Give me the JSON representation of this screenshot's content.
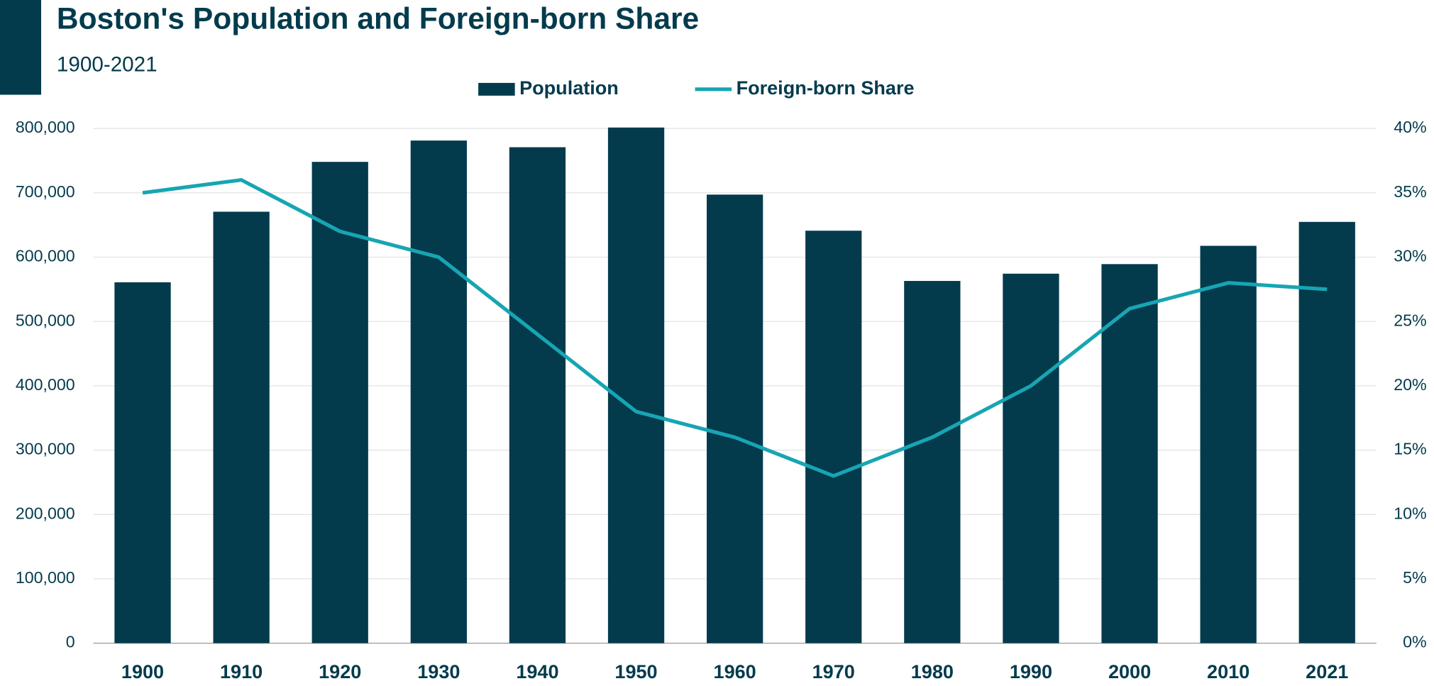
{
  "chart_data": {
    "type": "bar-line",
    "title": "Boston's Population and Foreign-born Share",
    "subtitle": "1900-2021",
    "categories": [
      "1900",
      "1910",
      "1920",
      "1930",
      "1940",
      "1950",
      "1960",
      "1970",
      "1980",
      "1990",
      "2000",
      "2010",
      "2021"
    ],
    "series": [
      {
        "name": "Population",
        "type": "bar",
        "color": "#033b4d",
        "axis": "y",
        "values": [
          560892,
          670585,
          748060,
          781188,
          770816,
          801444,
          697197,
          641071,
          562994,
          574283,
          589141,
          617594,
          654776
        ]
      },
      {
        "name": "Foreign-born Share",
        "type": "line",
        "color": "#17a5b3",
        "axis": "y2",
        "values": [
          35,
          36,
          32,
          30,
          24,
          18,
          16,
          13,
          16,
          20,
          26,
          28,
          27.5
        ]
      }
    ],
    "ylim": [
      0,
      800000
    ],
    "yticks": [
      0,
      {
        "value": 100000,
        "label": "100,000"
      },
      {
        "value": 200000,
        "label": "200,000"
      },
      {
        "value": 300000,
        "label": "300,000"
      },
      {
        "value": 400000,
        "label": "400,000"
      },
      {
        "value": 500000,
        "label": "500,000"
      },
      {
        "value": 600000,
        "label": "600,000"
      },
      {
        "value": 700000,
        "label": "700,000"
      },
      {
        "value": 800000,
        "label": "800,000"
      }
    ],
    "y2lim": [
      0,
      40
    ],
    "y2ticks": [
      {
        "value": 0,
        "label": "0%"
      },
      {
        "value": 5,
        "label": "5%"
      },
      {
        "value": 10,
        "label": "10%"
      },
      {
        "value": 15,
        "label": "15%"
      },
      {
        "value": 20,
        "label": "20%"
      },
      {
        "value": 25,
        "label": "25%"
      },
      {
        "value": 30,
        "label": "30%"
      },
      {
        "value": 35,
        "label": "35%"
      },
      {
        "value": 40,
        "label": "40%"
      }
    ],
    "grid": true,
    "legend": "top"
  }
}
